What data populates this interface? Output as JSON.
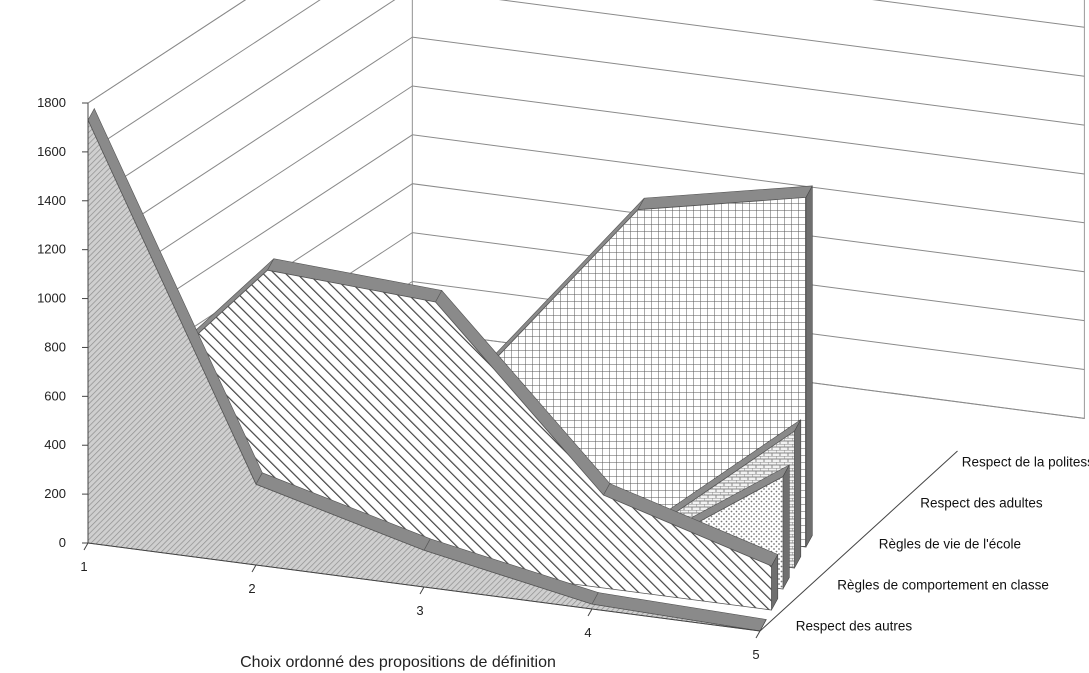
{
  "chart_data": {
    "type": "area",
    "variant": "3d-area",
    "title": "",
    "xlabel": "Choix ordonné des propositions de définition",
    "ylabel": "",
    "categories": [
      "1",
      "2",
      "3",
      "4",
      "5"
    ],
    "y_ticks": [
      "0",
      "200",
      "400",
      "600",
      "800",
      "1000",
      "1200",
      "1400",
      "1600",
      "1800"
    ],
    "ylim": [
      0,
      1800
    ],
    "grid": true,
    "series": [
      {
        "name": "Respect des autres",
        "values": [
          1730,
          330,
          150,
          20,
          0
        ],
        "color": "#c4c4c4",
        "pattern": "fine-hatch"
      },
      {
        "name": "Règles de comportement en classe",
        "values": [
          400,
          1120,
          1080,
          380,
          180
        ],
        "color": "#ffffff",
        "pattern": "diagonal"
      },
      {
        "name": "Règles de vie de l'école",
        "values": [
          0,
          0,
          0,
          0,
          460
        ],
        "color": "#ffffff",
        "pattern": "dots"
      },
      {
        "name": "Respect des adultes",
        "values": [
          0,
          0,
          0,
          0,
          560
        ],
        "color": "#ffffff",
        "pattern": "bricks"
      },
      {
        "name": "Respect de la politesse",
        "values": [
          0,
          0,
          480,
          1290,
          1430
        ],
        "color": "#ffffff",
        "pattern": "grid"
      }
    ]
  }
}
